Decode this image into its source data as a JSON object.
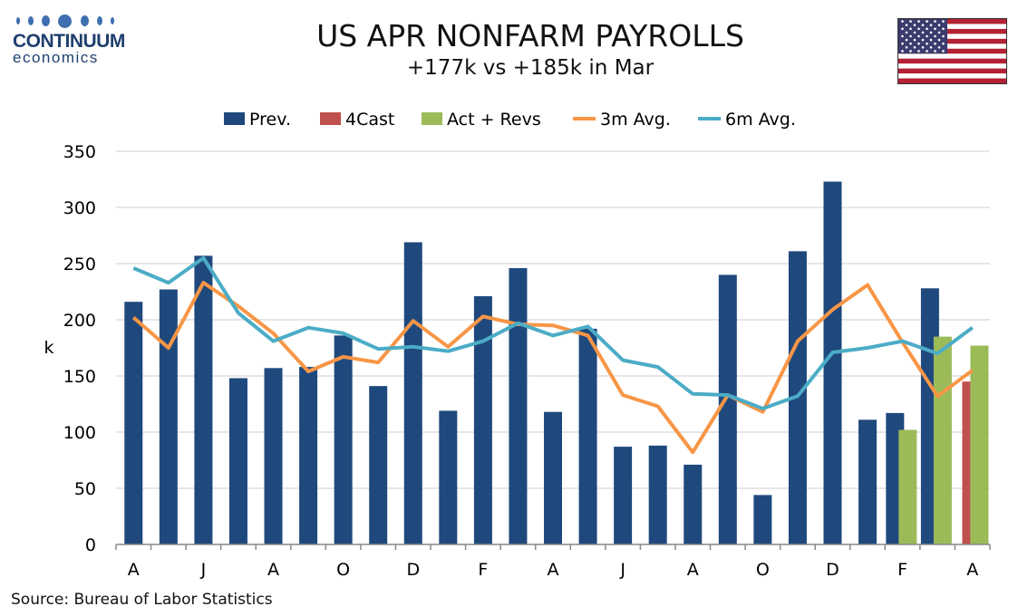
{
  "logo": {
    "name": "CONTINUUM",
    "sub": "economics"
  },
  "flag_icon": "us-flag-icon",
  "source": "Source: Bureau of Labor Statistics",
  "colors": {
    "prev": "#1f497d",
    "forecast": "#c0504d",
    "actual": "#9bbb59",
    "avg3": "#f79646",
    "avg6": "#4bacc6"
  },
  "chart_data": {
    "type": "bar",
    "title": "US APR NONFARM PAYROLLS",
    "subtitle": "+177k vs +185k in Mar",
    "ylabel": "k",
    "ylim": [
      0,
      350
    ],
    "yticks": [
      0,
      50,
      100,
      150,
      200,
      250,
      300,
      350
    ],
    "grid": true,
    "legend_position": "top",
    "x_tick_labels": [
      "A",
      "J",
      "A",
      "O",
      "D",
      "F",
      "A",
      "J",
      "A",
      "O",
      "D",
      "F",
      "A"
    ],
    "series": [
      {
        "name": "Prev.",
        "kind": "bar",
        "values": [
          216,
          227,
          257,
          148,
          157,
          158,
          186,
          141,
          269,
          119,
          221,
          246,
          118,
          192,
          87,
          88,
          71,
          240,
          44,
          261,
          323,
          111,
          117,
          228,
          null
        ]
      },
      {
        "name": "4Cast",
        "kind": "bar",
        "values": [
          null,
          null,
          null,
          null,
          null,
          null,
          null,
          null,
          null,
          null,
          null,
          null,
          null,
          null,
          null,
          null,
          null,
          null,
          null,
          null,
          null,
          null,
          null,
          null,
          145
        ]
      },
      {
        "name": "Act + Revs",
        "kind": "bar",
        "values": [
          null,
          null,
          null,
          null,
          null,
          null,
          null,
          null,
          null,
          null,
          null,
          null,
          null,
          null,
          null,
          null,
          null,
          null,
          null,
          null,
          null,
          null,
          102,
          185,
          177
        ]
      },
      {
        "name": "3m Avg.",
        "kind": "line",
        "values": [
          202,
          175,
          233,
          212,
          188,
          154,
          167,
          162,
          199,
          176,
          203,
          196,
          195,
          186,
          133,
          123,
          82,
          133,
          118,
          181,
          209,
          231,
          180,
          132,
          155
        ]
      },
      {
        "name": "6m Avg.",
        "kind": "line",
        "values": [
          246,
          233,
          255,
          206,
          181,
          193,
          188,
          174,
          176,
          172,
          181,
          197,
          186,
          194,
          164,
          158,
          134,
          133,
          121,
          132,
          171,
          175,
          181,
          170,
          193
        ]
      }
    ]
  }
}
